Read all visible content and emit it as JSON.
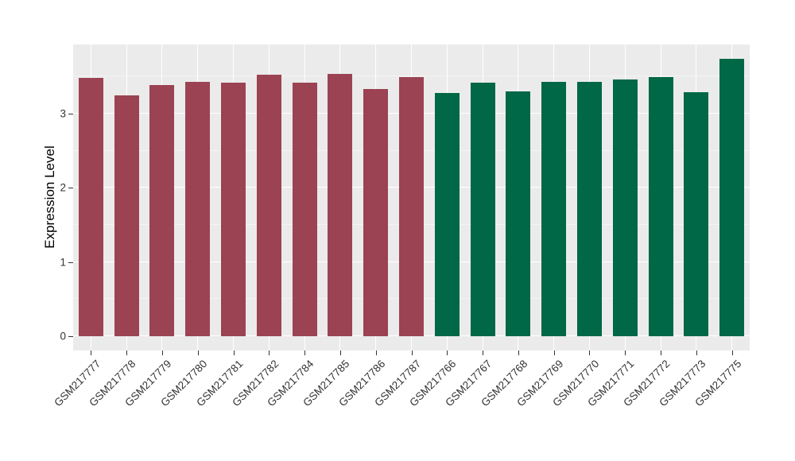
{
  "figure": {
    "background": "#FFFFFF",
    "panel_background": "#EBEBEB",
    "grid_major_color": "#FFFFFF",
    "grid_minor_color": "#F4F4F4",
    "axis_text_color": "#333333",
    "axis_title_color": "#000000"
  },
  "chart_data": {
    "type": "bar",
    "title": "",
    "xlabel": "",
    "ylabel": "Expression Level",
    "ylim": [
      0,
      3.93
    ],
    "yticks": [
      0,
      1,
      2,
      3
    ],
    "yminor": [
      0.5,
      1.5,
      2.5,
      3.5
    ],
    "grid": "on",
    "legend": "none",
    "categories": [
      "GSM217777",
      "GSM217778",
      "GSM217779",
      "GSM217780",
      "GSM217781",
      "GSM217782",
      "GSM217784",
      "GSM217785",
      "GSM217786",
      "GSM217787",
      "GSM217766",
      "GSM217767",
      "GSM217768",
      "GSM217769",
      "GSM217770",
      "GSM217771",
      "GSM217772",
      "GSM217773",
      "GSM217775"
    ],
    "values": [
      3.48,
      3.25,
      3.39,
      3.43,
      3.42,
      3.53,
      3.42,
      3.54,
      3.33,
      3.49,
      3.28,
      3.42,
      3.3,
      3.43,
      3.43,
      3.46,
      3.49,
      3.29,
      3.74
    ],
    "groups": [
      0,
      0,
      0,
      0,
      0,
      0,
      0,
      0,
      0,
      0,
      1,
      1,
      1,
      1,
      1,
      1,
      1,
      1,
      1
    ],
    "group_colors": [
      "#9B4352",
      "#006747"
    ]
  }
}
